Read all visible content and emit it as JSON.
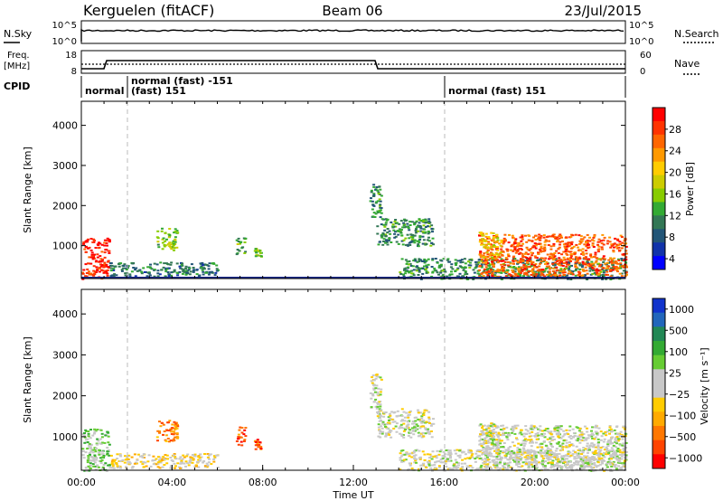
{
  "header": {
    "station": "Kerguelen (fitACF)",
    "beam": "Beam 06",
    "date": "23/Jul/2015"
  },
  "status_panels": {
    "nsky_label": "N.Sky",
    "nsearch_label": "N.Search",
    "nsky_ticks": [
      "10^5",
      "10^0"
    ],
    "nsearch_ticks": [
      "10^5",
      "10^0"
    ],
    "freq_label": "Freq.",
    "freq_unit": "[MHz]",
    "freq_ticks": [
      "18",
      "8"
    ],
    "nave_label": "Nave",
    "nave_ticks": [
      "60",
      "0"
    ],
    "cpid_label": "CPID",
    "cpid_segments": [
      {
        "label": "normal",
        "start_h": 0.0,
        "end_h": 2.0
      },
      {
        "label": "normal (fast) -151",
        "start_h": 2.0,
        "end_h": 16.0
      },
      {
        "label": "(fast) 151",
        "start_h": 2.0,
        "end_h": 4.5
      },
      {
        "label": "normal (fast) 151",
        "start_h": 16.0,
        "end_h": 24.0
      }
    ]
  },
  "chart_data": [
    {
      "type": "heatmap",
      "name": "power-panel",
      "ylabel": "Slant Range [km]",
      "ylim": [
        180,
        4600
      ],
      "yticks": [
        "1000",
        "2000",
        "3000",
        "4000"
      ],
      "xlim_hours": [
        0,
        24
      ],
      "colorbar_label": "Power [dB]",
      "colorbar_ticks": [
        "28",
        "24",
        "20",
        "16",
        "12",
        "8",
        "4"
      ],
      "colorbar_colors": [
        "#ff0000",
        "#ff3300",
        "#ff6600",
        "#ff9900",
        "#ffcc00",
        "#cccc00",
        "#88cc00",
        "#33aa33",
        "#337755",
        "#225577",
        "#1133aa",
        "#0000ff"
      ],
      "echo_regions": [
        {
          "t0": 0.0,
          "t1": 1.2,
          "r0": 180,
          "r1": 1200,
          "level": 0.95
        },
        {
          "t0": 1.2,
          "t1": 6.0,
          "r0": 250,
          "r1": 600,
          "level": 0.25
        },
        {
          "t0": 3.3,
          "t1": 4.2,
          "r0": 900,
          "r1": 1450,
          "level": 0.45
        },
        {
          "t0": 6.8,
          "t1": 7.2,
          "r0": 800,
          "r1": 1250,
          "level": 0.4
        },
        {
          "t0": 7.6,
          "t1": 7.9,
          "r0": 700,
          "r1": 950,
          "level": 0.4
        },
        {
          "t0": 12.7,
          "t1": 13.2,
          "r0": 1700,
          "r1": 2550,
          "level": 0.3
        },
        {
          "t0": 13.0,
          "t1": 15.5,
          "r0": 1000,
          "r1": 1700,
          "level": 0.3
        },
        {
          "t0": 14.0,
          "t1": 24.0,
          "r0": 180,
          "r1": 700,
          "level": 0.3
        },
        {
          "t0": 17.5,
          "t1": 24.0,
          "r0": 250,
          "r1": 1300,
          "level": 0.85
        },
        {
          "t0": 17.5,
          "t1": 18.5,
          "r0": 700,
          "r1": 1350,
          "level": 0.6
        }
      ]
    },
    {
      "type": "heatmap",
      "name": "velocity-panel",
      "ylabel": "Slant Range [km]",
      "xlabel": "Time UT",
      "ylim": [
        180,
        4600
      ],
      "yticks": [
        "1000",
        "2000",
        "3000",
        "4000"
      ],
      "xticks": [
        "00:00",
        "04:00",
        "08:00",
        "12:00",
        "16:00",
        "20:00",
        "00:00"
      ],
      "xlim_hours": [
        0,
        24
      ],
      "colorbar_label": "Velocity [m s⁻¹]",
      "colorbar_ticks": [
        "1000",
        "500",
        "100",
        "25",
        "−25",
        "−100",
        "−500",
        "−1000"
      ],
      "colorbar_colors": [
        "#1133cc",
        "#2266bb",
        "#228855",
        "#33aa33",
        "#66cc33",
        "#c8c8c8",
        "#c8c8c8",
        "#ffcc00",
        "#ffaa00",
        "#ff7700",
        "#ff4400",
        "#ff0000"
      ],
      "echo_regions": [
        {
          "t0": 0.0,
          "t1": 1.2,
          "r0": 180,
          "r1": 1200,
          "level": 0.6
        },
        {
          "t0": 1.2,
          "t1": 6.0,
          "r0": 250,
          "r1": 600,
          "level": 0.4
        },
        {
          "t0": 3.3,
          "t1": 4.2,
          "r0": 900,
          "r1": 1450,
          "level": 0.2
        },
        {
          "t0": 6.8,
          "t1": 7.2,
          "r0": 800,
          "r1": 1250,
          "level": 0.15
        },
        {
          "t0": 7.6,
          "t1": 7.9,
          "r0": 700,
          "r1": 950,
          "level": 0.15
        },
        {
          "t0": 12.7,
          "t1": 13.2,
          "r0": 1700,
          "r1": 2550,
          "level": 0.5
        },
        {
          "t0": 13.0,
          "t1": 15.5,
          "r0": 1000,
          "r1": 1700,
          "level": 0.5
        },
        {
          "t0": 14.0,
          "t1": 24.0,
          "r0": 180,
          "r1": 700,
          "level": 0.5
        },
        {
          "t0": 17.5,
          "t1": 24.0,
          "r0": 250,
          "r1": 1300,
          "level": 0.5
        },
        {
          "t0": 17.5,
          "t1": 18.5,
          "r0": 700,
          "r1": 1350,
          "level": 0.5
        }
      ]
    }
  ]
}
